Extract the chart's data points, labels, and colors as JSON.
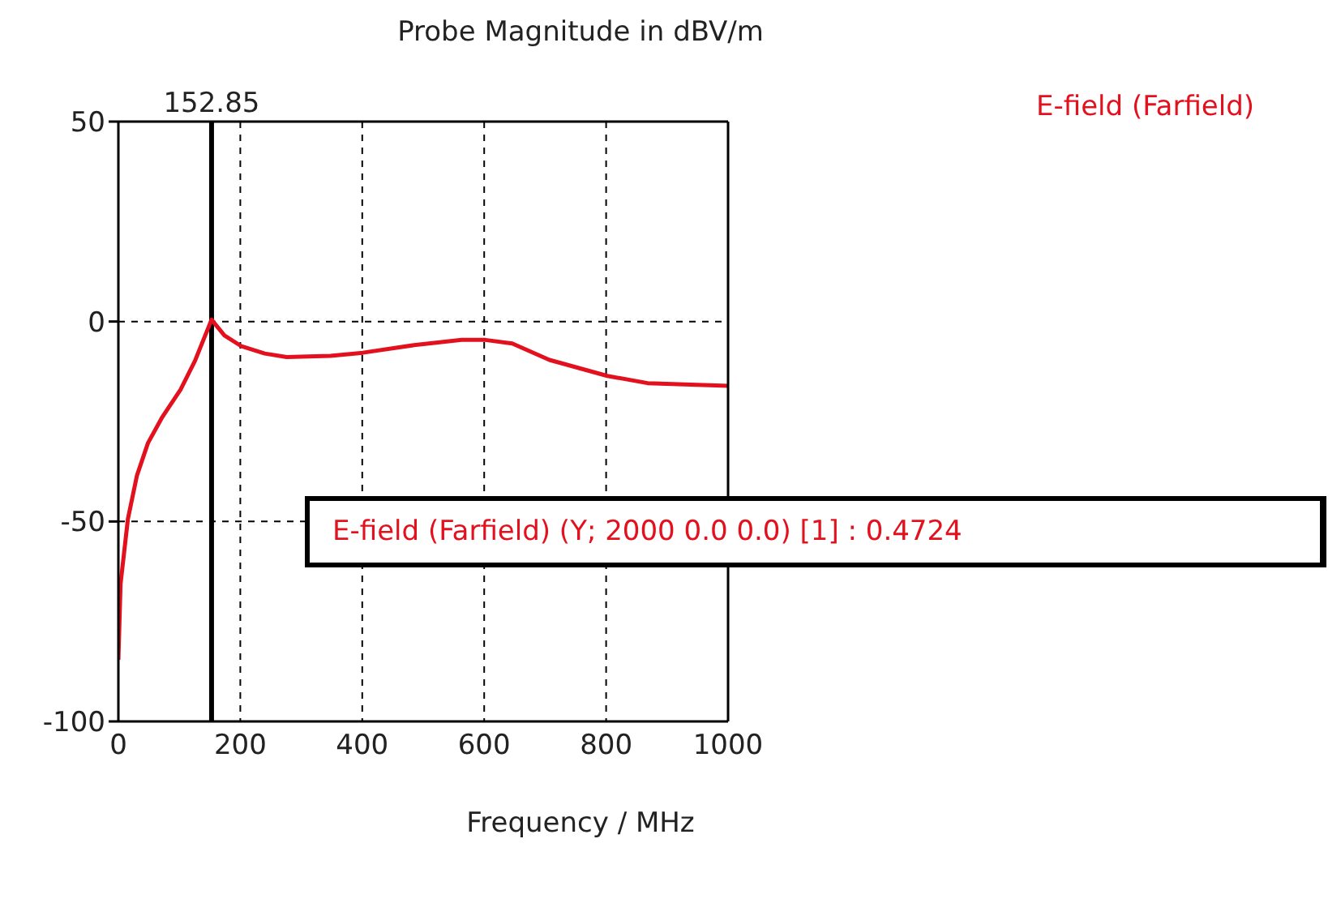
{
  "chart_data": {
    "type": "line",
    "title": "Probe Magnitude in dBV/m",
    "xlabel": "Frequency / MHz",
    "x": [
      0,
      3.6,
      15.6,
      30.5,
      48.5,
      72,
      102,
      126,
      152.85,
      174,
      201,
      240,
      276,
      348,
      401,
      485,
      563,
      602,
      646,
      707,
      802,
      868,
      1000
    ],
    "series": [
      {
        "name": "E-field (Farfield)",
        "color": "#e3101e",
        "values": [
          -84.6,
          -65.6,
          -49.4,
          -38.5,
          -30.4,
          -23.9,
          -17,
          -9.7,
          0.4724,
          -3.5,
          -6.1,
          -8,
          -8.9,
          -8.6,
          -7.8,
          -5.9,
          -4.6,
          -4.6,
          -5.5,
          -9.6,
          -13.6,
          -15.4,
          -16.1
        ]
      }
    ],
    "xlim": [
      0,
      1000
    ],
    "xticks": [
      0,
      200,
      400,
      600,
      800,
      1000
    ],
    "ylim": [
      -100,
      50
    ],
    "yticks": [
      -100,
      -50,
      0,
      50
    ],
    "grid": true,
    "legend": "top right",
    "marker": "none",
    "line_style": "solid",
    "ref_lines": [
      {
        "axis": "x",
        "value": 152.85,
        "label": "152.85",
        "color": "#000000"
      }
    ],
    "annotations": [
      "E-field (Farfield) (Y; 2000 0.0 0.0) [1] : 0.4724"
    ]
  }
}
